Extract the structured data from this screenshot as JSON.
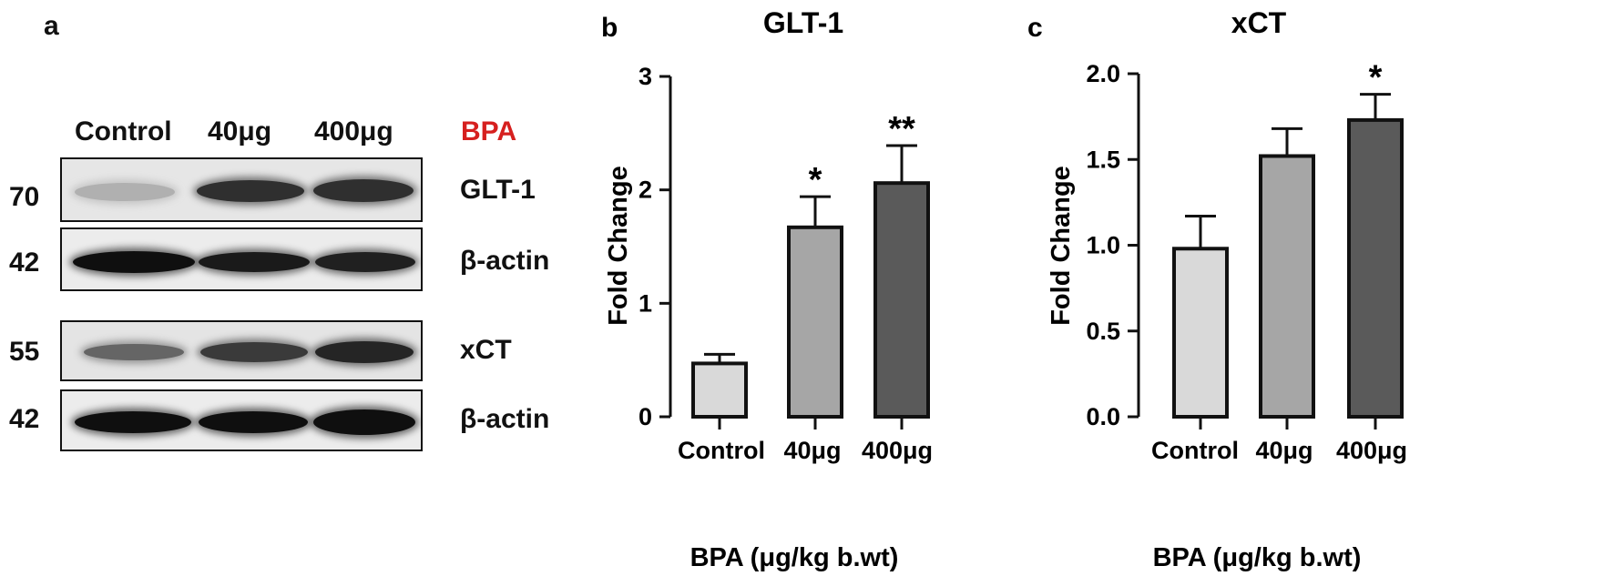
{
  "panel_a": {
    "letter": "a",
    "bpa_tag": "BPA",
    "lanes": [
      "Control",
      "40μg",
      "400μg"
    ],
    "blots": [
      {
        "mw": "70",
        "label": "GLT-1",
        "band_intensity": [
          0.25,
          0.85,
          0.85
        ]
      },
      {
        "mw": "42",
        "label": "β-actin",
        "band_intensity": [
          1.0,
          0.95,
          0.92
        ]
      },
      {
        "mw": "55",
        "label": "xCT",
        "band_intensity": [
          0.6,
          0.8,
          0.9
        ]
      },
      {
        "mw": "42",
        "label": "β-actin",
        "band_intensity": [
          1.0,
          1.0,
          1.0
        ]
      }
    ]
  },
  "chart_data": [
    {
      "type": "bar",
      "panel_letter": "b",
      "title": "GLT-1",
      "xlabel": "BPA (μg/kg b.wt)",
      "ylabel": "Fold Change",
      "categories": [
        "Control",
        "40μg",
        "400μg"
      ],
      "values": [
        0.47,
        1.67,
        2.06
      ],
      "errors": [
        0.08,
        0.27,
        0.33
      ],
      "significance": [
        "",
        "*",
        "**"
      ],
      "ylim": [
        0,
        3
      ],
      "yticks": [
        "0",
        "1",
        "2",
        "3"
      ],
      "bar_colors": [
        "#d9d9d9",
        "#a6a6a6",
        "#5a5a5a"
      ]
    },
    {
      "type": "bar",
      "panel_letter": "c",
      "title": "xCT",
      "xlabel": "BPA (μg/kg b.wt)",
      "ylabel": "Fold Change",
      "categories": [
        "Control",
        "40μg",
        "400μg"
      ],
      "values": [
        0.98,
        1.52,
        1.73
      ],
      "errors": [
        0.19,
        0.16,
        0.15
      ],
      "significance": [
        "",
        "",
        "*"
      ],
      "ylim": [
        0,
        2.0
      ],
      "yticks": [
        "0.0",
        "0.5",
        "1.0",
        "1.5",
        "2.0"
      ],
      "bar_colors": [
        "#d9d9d9",
        "#a6a6a6",
        "#5a5a5a"
      ]
    }
  ]
}
